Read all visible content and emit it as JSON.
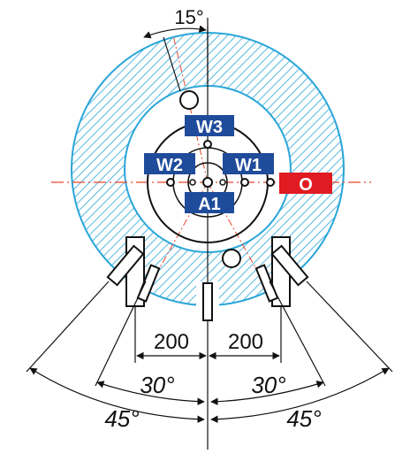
{
  "colors": {
    "ring_stroke": "#2aa6d8",
    "hatch": "#2aa6d8",
    "center_line": "#e8462a",
    "label_blue": "#1f4b9b",
    "label_red": "#e11b22",
    "ink": "#111111"
  },
  "labels": {
    "w3": "W3",
    "w2": "W2",
    "w1": "W1",
    "a1": "A1",
    "o": "O"
  },
  "dimensions": {
    "top_angle": "15°",
    "left_distance": "200",
    "right_distance": "200",
    "left_inner_angle": "30°",
    "right_inner_angle": "30°",
    "left_outer_angle": "45°",
    "right_outer_angle": "45°"
  }
}
